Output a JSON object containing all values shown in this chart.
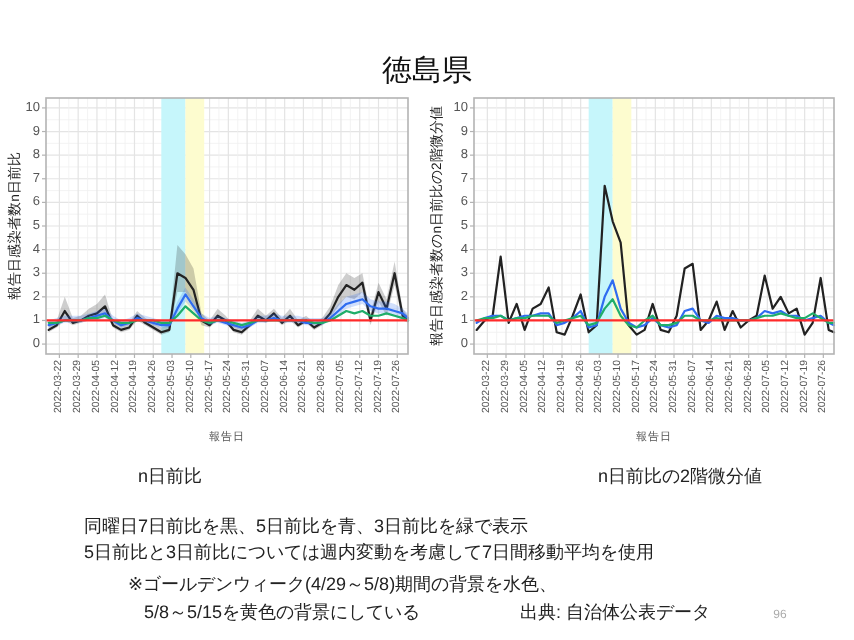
{
  "chart_data": [
    {
      "type": "line",
      "title": "徳島県",
      "ylabel": "報告日感染者数n日前比",
      "xlabel": "報告日",
      "annotations": [
        "n日前比",
        "同曜日7日前比を黒、5日前比を青、3日前比を緑で表示",
        "5日前比と3日前比については週内変動を考慮して7日間移動平均を使用",
        "※ゴールデンウィーク(4/29～5/8)期間の背景を水色、",
        "5/8～5/15を黄色の背景にしている"
      ],
      "x": [
        "2022-03-18",
        "2022-03-21",
        "2022-03-24",
        "2022-03-27",
        "2022-03-30",
        "2022-04-02",
        "2022-04-05",
        "2022-04-08",
        "2022-04-11",
        "2022-04-14",
        "2022-04-17",
        "2022-04-20",
        "2022-04-23",
        "2022-04-26",
        "2022-04-29",
        "2022-05-02",
        "2022-05-05",
        "2022-05-08",
        "2022-05-11",
        "2022-05-14",
        "2022-05-17",
        "2022-05-20",
        "2022-05-23",
        "2022-05-26",
        "2022-05-29",
        "2022-06-01",
        "2022-06-04",
        "2022-06-07",
        "2022-06-10",
        "2022-06-13",
        "2022-06-16",
        "2022-06-19",
        "2022-06-22",
        "2022-06-25",
        "2022-06-28",
        "2022-07-01",
        "2022-07-04",
        "2022-07-07",
        "2022-07-10",
        "2022-07-13",
        "2022-07-16",
        "2022-07-19",
        "2022-07-22",
        "2022-07-25",
        "2022-07-28",
        "2022-07-30"
      ],
      "series": [
        {
          "color": "#222222",
          "values": [
            0.6,
            0.8,
            1.4,
            0.9,
            1.0,
            1.2,
            1.3,
            1.6,
            0.8,
            0.6,
            0.7,
            1.2,
            0.9,
            0.7,
            0.5,
            0.6,
            3.0,
            2.8,
            2.3,
            1.0,
            0.8,
            1.2,
            1.0,
            0.6,
            0.5,
            0.8,
            1.2,
            1.0,
            1.3,
            0.9,
            1.2,
            0.8,
            1.0,
            0.7,
            0.9,
            1.3,
            2.0,
            2.5,
            2.3,
            2.6,
            1.0,
            2.2,
            1.5,
            3.0,
            1.2,
            1.0
          ],
          "lower": [
            0.5,
            0.7,
            1.0,
            0.8,
            0.9,
            1.0,
            1.1,
            1.3,
            0.7,
            0.5,
            0.6,
            1.0,
            0.8,
            0.6,
            0.4,
            0.5,
            2.2,
            2.2,
            1.7,
            0.8,
            0.7,
            1.0,
            0.9,
            0.5,
            0.4,
            0.7,
            1.0,
            0.9,
            1.1,
            0.8,
            1.0,
            0.7,
            0.9,
            0.6,
            0.8,
            1.1,
            1.6,
            2.0,
            1.9,
            2.2,
            0.8,
            1.8,
            1.2,
            2.5,
            1.0,
            0.9
          ],
          "upper": [
            0.8,
            1.0,
            2.0,
            1.1,
            1.2,
            1.5,
            1.7,
            2.1,
            1.0,
            0.8,
            0.9,
            1.4,
            1.1,
            0.9,
            0.7,
            0.8,
            4.2,
            3.8,
            3.2,
            1.3,
            1.0,
            1.5,
            1.2,
            0.8,
            0.7,
            1.0,
            1.5,
            1.2,
            1.5,
            1.1,
            1.5,
            1.0,
            1.2,
            0.9,
            1.1,
            1.6,
            2.5,
            3.0,
            2.8,
            3.0,
            1.3,
            2.6,
            1.9,
            3.5,
            1.5,
            1.2
          ]
        },
        {
          "color": "#2f6cf0",
          "values": [
            0.8,
            0.9,
            1.0,
            1.0,
            1.0,
            1.1,
            1.2,
            1.3,
            1.0,
            0.8,
            0.9,
            1.1,
            1.0,
            0.9,
            0.8,
            0.8,
            1.5,
            2.1,
            1.6,
            1.1,
            0.9,
            1.0,
            0.9,
            0.8,
            0.7,
            0.8,
            1.0,
            1.0,
            1.1,
            1.0,
            1.0,
            1.0,
            0.9,
            0.9,
            0.9,
            1.1,
            1.4,
            1.7,
            1.8,
            1.9,
            1.6,
            1.5,
            1.5,
            1.4,
            1.3,
            1.1
          ],
          "lower": [
            0.7,
            0.8,
            0.9,
            0.9,
            0.9,
            1.0,
            1.0,
            1.1,
            0.9,
            0.7,
            0.8,
            1.0,
            0.9,
            0.8,
            0.7,
            0.7,
            1.3,
            1.8,
            1.4,
            1.0,
            0.8,
            0.9,
            0.8,
            0.7,
            0.6,
            0.7,
            0.9,
            0.9,
            1.0,
            0.9,
            0.9,
            0.9,
            0.8,
            0.8,
            0.8,
            1.0,
            1.2,
            1.5,
            1.6,
            1.7,
            1.4,
            1.3,
            1.3,
            1.2,
            1.1,
            1.0
          ],
          "upper": [
            1.0,
            1.1,
            1.2,
            1.2,
            1.2,
            1.3,
            1.4,
            1.5,
            1.2,
            1.0,
            1.1,
            1.3,
            1.2,
            1.1,
            1.0,
            1.0,
            1.8,
            2.4,
            1.9,
            1.3,
            1.1,
            1.2,
            1.1,
            1.0,
            0.9,
            1.0,
            1.2,
            1.2,
            1.3,
            1.2,
            1.2,
            1.2,
            1.1,
            1.1,
            1.1,
            1.3,
            1.7,
            2.0,
            2.1,
            2.2,
            1.9,
            1.8,
            1.8,
            1.7,
            1.5,
            1.3
          ]
        },
        {
          "color": "#1fae6a",
          "values": [
            0.9,
            0.9,
            1.0,
            1.0,
            1.0,
            1.1,
            1.1,
            1.2,
            1.0,
            0.9,
            0.9,
            1.0,
            1.0,
            1.0,
            0.9,
            0.9,
            1.2,
            1.6,
            1.3,
            1.0,
            0.9,
            1.0,
            1.0,
            0.9,
            0.8,
            0.9,
            1.0,
            1.0,
            1.0,
            1.0,
            1.0,
            1.0,
            1.0,
            0.9,
            0.9,
            1.0,
            1.2,
            1.4,
            1.3,
            1.4,
            1.2,
            1.2,
            1.3,
            1.2,
            1.1,
            1.0
          ]
        }
      ],
      "xlim": [
        "2022-03-17",
        "2022-07-30"
      ],
      "ylim": [
        -0.42,
        10.42
      ],
      "xticks": [
        "2022-03-22",
        "2022-03-29",
        "2022-04-05",
        "2022-04-12",
        "2022-04-19",
        "2022-04-26",
        "2022-05-03",
        "2022-05-10",
        "2022-05-17",
        "2022-05-24",
        "2022-05-31",
        "2022-06-07",
        "2022-06-14",
        "2022-06-21",
        "2022-06-28",
        "2022-07-05",
        "2022-07-12",
        "2022-07-19",
        "2022-07-26"
      ],
      "yticks": [
        0,
        1,
        2,
        3,
        4,
        5,
        6,
        7,
        8,
        9,
        10
      ],
      "grid": true,
      "ref_lines": [
        {
          "axis": "y",
          "value": 1,
          "color": "#ff2a2a"
        }
      ],
      "bands": [
        {
          "axis": "x",
          "from": "2022-04-29",
          "to": "2022-05-08",
          "color": "#c6f6fb"
        },
        {
          "axis": "x",
          "from": "2022-05-08",
          "to": "2022-05-15",
          "color": "#fdfccf"
        }
      ]
    },
    {
      "type": "line",
      "ylabel": "報告日感染者数のn日前比の2階微分値",
      "xlabel": "報告日",
      "annotations": [
        "n日前比の2階微分値",
        "出典: 自治体公表データ",
        "96"
      ],
      "x": [
        "2022-03-18",
        "2022-03-21",
        "2022-03-24",
        "2022-03-27",
        "2022-03-30",
        "2022-04-02",
        "2022-04-05",
        "2022-04-08",
        "2022-04-11",
        "2022-04-14",
        "2022-04-17",
        "2022-04-20",
        "2022-04-23",
        "2022-04-26",
        "2022-04-29",
        "2022-05-02",
        "2022-05-05",
        "2022-05-08",
        "2022-05-11",
        "2022-05-14",
        "2022-05-17",
        "2022-05-20",
        "2022-05-23",
        "2022-05-26",
        "2022-05-29",
        "2022-06-01",
        "2022-06-04",
        "2022-06-07",
        "2022-06-10",
        "2022-06-13",
        "2022-06-16",
        "2022-06-19",
        "2022-06-22",
        "2022-06-25",
        "2022-06-28",
        "2022-07-01",
        "2022-07-04",
        "2022-07-07",
        "2022-07-10",
        "2022-07-13",
        "2022-07-16",
        "2022-07-19",
        "2022-07-22",
        "2022-07-25",
        "2022-07-28",
        "2022-07-30"
      ],
      "series": [
        {
          "color": "#222222",
          "values": [
            0.6,
            1.0,
            1.2,
            3.7,
            0.9,
            1.7,
            0.6,
            1.5,
            1.7,
            2.4,
            0.5,
            0.4,
            1.2,
            2.1,
            0.5,
            0.8,
            6.7,
            5.2,
            4.3,
            0.8,
            0.4,
            0.6,
            1.7,
            0.6,
            0.5,
            1.2,
            3.2,
            3.4,
            0.6,
            1.0,
            1.8,
            0.6,
            1.4,
            0.7,
            1.0,
            1.2,
            2.9,
            1.5,
            2.0,
            1.3,
            1.5,
            0.4,
            0.9,
            2.8,
            0.6,
            0.5
          ]
        },
        {
          "color": "#2f6cf0",
          "values": [
            0.9,
            1.1,
            1.2,
            1.2,
            1.0,
            1.1,
            1.2,
            1.2,
            1.3,
            1.3,
            0.8,
            0.9,
            1.1,
            1.4,
            0.7,
            0.8,
            2.0,
            2.7,
            1.5,
            0.9,
            0.7,
            0.8,
            1.1,
            0.8,
            0.7,
            0.8,
            1.4,
            1.5,
            1.0,
            0.9,
            1.2,
            1.1,
            1.1,
            1.0,
            1.0,
            1.1,
            1.4,
            1.3,
            1.4,
            1.2,
            1.2,
            1.0,
            1.1,
            1.2,
            0.9,
            0.8
          ]
        },
        {
          "color": "#1fae6a",
          "values": [
            1.0,
            1.1,
            1.1,
            1.2,
            1.0,
            1.1,
            1.1,
            1.2,
            1.2,
            1.2,
            0.9,
            1.0,
            1.1,
            1.2,
            0.8,
            0.9,
            1.5,
            1.9,
            1.2,
            0.8,
            0.7,
            1.0,
            1.2,
            0.8,
            0.8,
            0.9,
            1.2,
            1.2,
            1.0,
            1.0,
            1.1,
            1.0,
            1.0,
            1.0,
            1.0,
            1.1,
            1.2,
            1.2,
            1.3,
            1.2,
            1.1,
            1.1,
            1.3,
            1.1,
            0.9,
            0.9
          ]
        }
      ],
      "xlim": [
        "2022-03-17",
        "2022-07-30"
      ],
      "ylim": [
        -0.42,
        10.42
      ],
      "xticks": [
        "2022-03-22",
        "2022-03-29",
        "2022-04-05",
        "2022-04-12",
        "2022-04-19",
        "2022-04-26",
        "2022-05-03",
        "2022-05-10",
        "2022-05-17",
        "2022-05-24",
        "2022-05-31",
        "2022-06-07",
        "2022-06-14",
        "2022-06-21",
        "2022-06-28",
        "2022-07-05",
        "2022-07-12",
        "2022-07-19",
        "2022-07-26"
      ],
      "yticks": [
        0,
        1,
        2,
        3,
        4,
        5,
        6,
        7,
        8,
        9,
        10
      ],
      "grid": true,
      "ref_lines": [
        {
          "axis": "y",
          "value": 1,
          "color": "#ff2a2a"
        }
      ],
      "bands": [
        {
          "axis": "x",
          "from": "2022-04-29",
          "to": "2022-05-08",
          "color": "#c6f6fb"
        },
        {
          "axis": "x",
          "from": "2022-05-08",
          "to": "2022-05-15",
          "color": "#fdfccf"
        }
      ]
    }
  ]
}
